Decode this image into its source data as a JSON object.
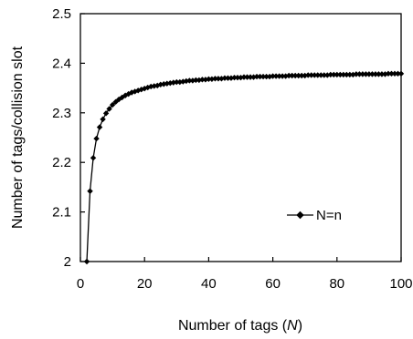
{
  "chart_data": {
    "type": "line",
    "xlabel": "Number of tags (N)",
    "xlabel_parts": [
      "Number of tags (",
      "N",
      ")"
    ],
    "ylabel": "Number of tags/collision slot",
    "xlim": [
      0,
      100
    ],
    "ylim": [
      2,
      2.5
    ],
    "xticks": [
      0,
      20,
      40,
      60,
      80,
      100
    ],
    "yticks": [
      2,
      2.1,
      2.2,
      2.3,
      2.4,
      2.5
    ],
    "xtick_labels": [
      "0",
      "20",
      "40",
      "60",
      "80",
      "100"
    ],
    "ytick_labels": [
      "2",
      "2.1",
      "2.2",
      "2.3",
      "2.4",
      "2.5"
    ],
    "grid": false,
    "legend_position": "middle-right",
    "colors": {
      "line": "#000000",
      "marker": "#000000"
    },
    "series": [
      {
        "name": "N=n",
        "marker": "diamond",
        "x": [
          2,
          3,
          4,
          5,
          6,
          7,
          8,
          9,
          10,
          11,
          12,
          13,
          14,
          15,
          16,
          17,
          18,
          19,
          20,
          21,
          22,
          23,
          24,
          25,
          26,
          27,
          28,
          29,
          30,
          31,
          32,
          33,
          34,
          35,
          36,
          37,
          38,
          39,
          40,
          41,
          42,
          43,
          44,
          45,
          46,
          47,
          48,
          49,
          50,
          51,
          52,
          53,
          54,
          55,
          56,
          57,
          58,
          59,
          60,
          61,
          62,
          63,
          64,
          65,
          66,
          67,
          68,
          69,
          70,
          71,
          72,
          73,
          74,
          75,
          76,
          77,
          78,
          79,
          80,
          81,
          82,
          83,
          84,
          85,
          86,
          87,
          88,
          89,
          90,
          91,
          92,
          93,
          94,
          95,
          96,
          97,
          98,
          99,
          100
        ],
        "values": [
          2.0,
          2.142,
          2.209,
          2.248,
          2.271,
          2.287,
          2.299,
          2.308,
          2.316,
          2.322,
          2.327,
          2.331,
          2.335,
          2.338,
          2.341,
          2.343,
          2.345,
          2.347,
          2.349,
          2.351,
          2.353,
          2.354,
          2.355,
          2.357,
          2.358,
          2.359,
          2.36,
          2.361,
          2.362,
          2.362,
          2.363,
          2.364,
          2.365,
          2.365,
          2.366,
          2.366,
          2.367,
          2.367,
          2.368,
          2.368,
          2.369,
          2.369,
          2.369,
          2.37,
          2.37,
          2.37,
          2.371,
          2.371,
          2.371,
          2.372,
          2.372,
          2.372,
          2.372,
          2.373,
          2.373,
          2.373,
          2.373,
          2.373,
          2.374,
          2.374,
          2.374,
          2.374,
          2.374,
          2.375,
          2.375,
          2.375,
          2.375,
          2.375,
          2.375,
          2.376,
          2.376,
          2.376,
          2.376,
          2.376,
          2.376,
          2.376,
          2.377,
          2.377,
          2.377,
          2.377,
          2.377,
          2.377,
          2.377,
          2.377,
          2.378,
          2.378,
          2.378,
          2.378,
          2.378,
          2.378,
          2.378,
          2.378,
          2.378,
          2.378,
          2.379,
          2.379,
          2.379,
          2.379,
          2.379
        ]
      }
    ]
  }
}
